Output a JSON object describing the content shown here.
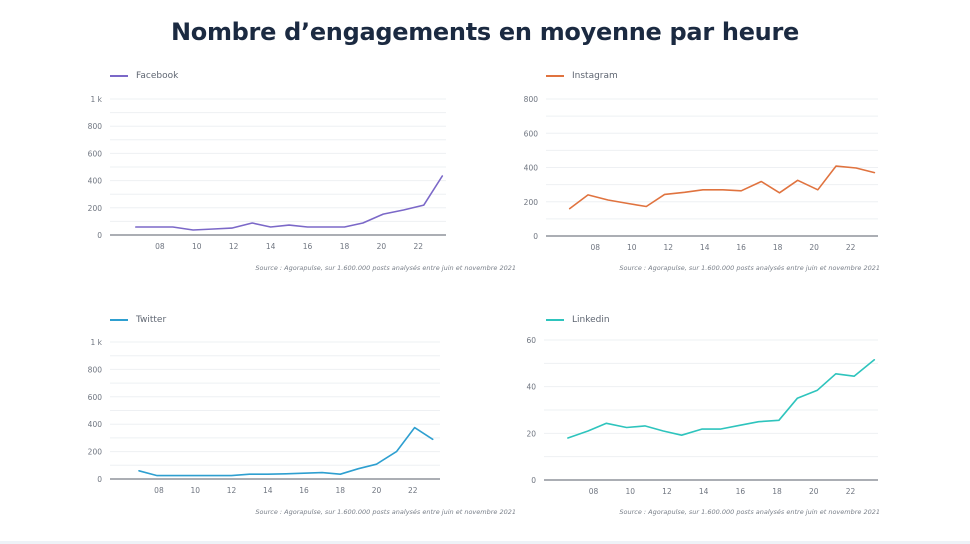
{
  "page": {
    "title": "Nombre d’engagements en moyenne par heure"
  },
  "chart_data": [
    {
      "type": "line",
      "title": "Facebook",
      "legend": "Facebook",
      "color": "#7b68c8",
      "xlabel": "",
      "ylabel": "",
      "x": [
        6.7,
        7.7,
        8.7,
        9.8,
        10.9,
        11.9,
        13.0,
        14.0,
        15.0,
        16.0,
        17.0,
        18.0,
        19.0,
        20.1,
        21.2,
        22.3,
        23.3
      ],
      "values": [
        59,
        59,
        59,
        37,
        44,
        51,
        88,
        59,
        73,
        59,
        59,
        59,
        88,
        154,
        184,
        220,
        434
      ],
      "xticks": [
        8,
        10,
        12,
        14,
        16,
        18,
        20,
        22
      ],
      "xtick_labels": [
        "08",
        "10",
        "12",
        "14",
        "16",
        "18",
        "20",
        "22"
      ],
      "yticks": [
        0,
        200,
        400,
        600,
        800,
        1000
      ],
      "ytick_labels": [
        "0",
        "200",
        "400",
        "600",
        "800",
        "1 k"
      ],
      "ylim": [
        0,
        1000
      ],
      "xlim": [
        5.3,
        23.5
      ],
      "grid_step": 100,
      "source": "Source : Agorapulse, sur 1.600.000 posts analysés entre juin et novembre 2021"
    },
    {
      "type": "line",
      "title": "Instagram",
      "legend": "Instagram",
      "color": "#e0733f",
      "xlabel": "",
      "ylabel": "",
      "x": [
        6.6,
        7.6,
        8.7,
        9.8,
        10.8,
        11.8,
        12.9,
        13.9,
        15.0,
        16.0,
        17.1,
        18.1,
        19.1,
        20.2,
        21.2,
        22.3,
        23.3
      ],
      "values": [
        160,
        240,
        210,
        190,
        172,
        243,
        255,
        270,
        270,
        264,
        318,
        252,
        325,
        270,
        408,
        397,
        370
      ],
      "xticks": [
        8,
        10,
        12,
        14,
        16,
        18,
        20,
        22
      ],
      "xtick_labels": [
        "08",
        "10",
        "12",
        "14",
        "16",
        "18",
        "20",
        "22"
      ],
      "yticks": [
        0,
        200,
        400,
        600,
        800
      ],
      "ytick_labels": [
        "0",
        "200",
        "400",
        "600",
        "800"
      ],
      "ylim": [
        0,
        800
      ],
      "xlim": [
        5.3,
        23.5
      ],
      "grid_step": 100,
      "source": "Source : Agorapulse, sur 1.600.000 posts analysés entre juin et novembre 2021"
    },
    {
      "type": "line",
      "title": "Twitter",
      "legend": "Twitter",
      "color": "#2e9fd0",
      "xlabel": "",
      "ylabel": "",
      "x": [
        6.9,
        7.9,
        9.0,
        10.0,
        11.0,
        12.0,
        13.0,
        14.0,
        15.0,
        16.0,
        17.0,
        18.0,
        19.0,
        20.0,
        21.1,
        22.1,
        23.1
      ],
      "values": [
        60,
        25,
        25,
        25,
        25,
        25,
        35,
        35,
        38,
        42,
        47,
        35,
        75,
        108,
        200,
        375,
        290
      ],
      "xticks": [
        8,
        10,
        12,
        14,
        16,
        18,
        20,
        22
      ],
      "xtick_labels": [
        "08",
        "10",
        "12",
        "14",
        "16",
        "18",
        "20",
        "22"
      ],
      "yticks": [
        0,
        200,
        400,
        600,
        800,
        1000
      ],
      "ytick_labels": [
        "0",
        "200",
        "400",
        "600",
        "800",
        "1 k"
      ],
      "ylim": [
        0,
        1000
      ],
      "xlim": [
        5.3,
        23.5
      ],
      "grid_step": 100,
      "source": "Source : Agorapulse, sur 1.600.000 posts analysés entre juin et novembre 2021"
    },
    {
      "type": "line",
      "title": "Linkedin",
      "legend": "Linkedin",
      "color": "#2ec4bd",
      "xlabel": "",
      "ylabel": "",
      "x": [
        6.6,
        7.7,
        8.7,
        9.8,
        10.8,
        11.8,
        12.8,
        13.9,
        14.9,
        16.0,
        17.0,
        18.1,
        19.1,
        20.2,
        21.2,
        22.2,
        23.3
      ],
      "values": [
        18,
        21,
        24.3,
        22.5,
        23.2,
        21,
        19.2,
        21.8,
        21.8,
        23.5,
        25,
        25.6,
        35,
        38.5,
        45.5,
        44.5,
        51.5
      ],
      "xticks": [
        8,
        10,
        12,
        14,
        16,
        18,
        20,
        22
      ],
      "xtick_labels": [
        "08",
        "10",
        "12",
        "14",
        "16",
        "18",
        "20",
        "22"
      ],
      "yticks": [
        0,
        20,
        40,
        60
      ],
      "ytick_labels": [
        "0",
        "20",
        "40",
        "60"
      ],
      "ylim": [
        0,
        60
      ],
      "xlim": [
        5.3,
        23.5
      ],
      "grid_step": 10,
      "source": "Source : Agorapulse, sur 1.600.000 posts analysés entre juin et novembre 2021"
    }
  ]
}
